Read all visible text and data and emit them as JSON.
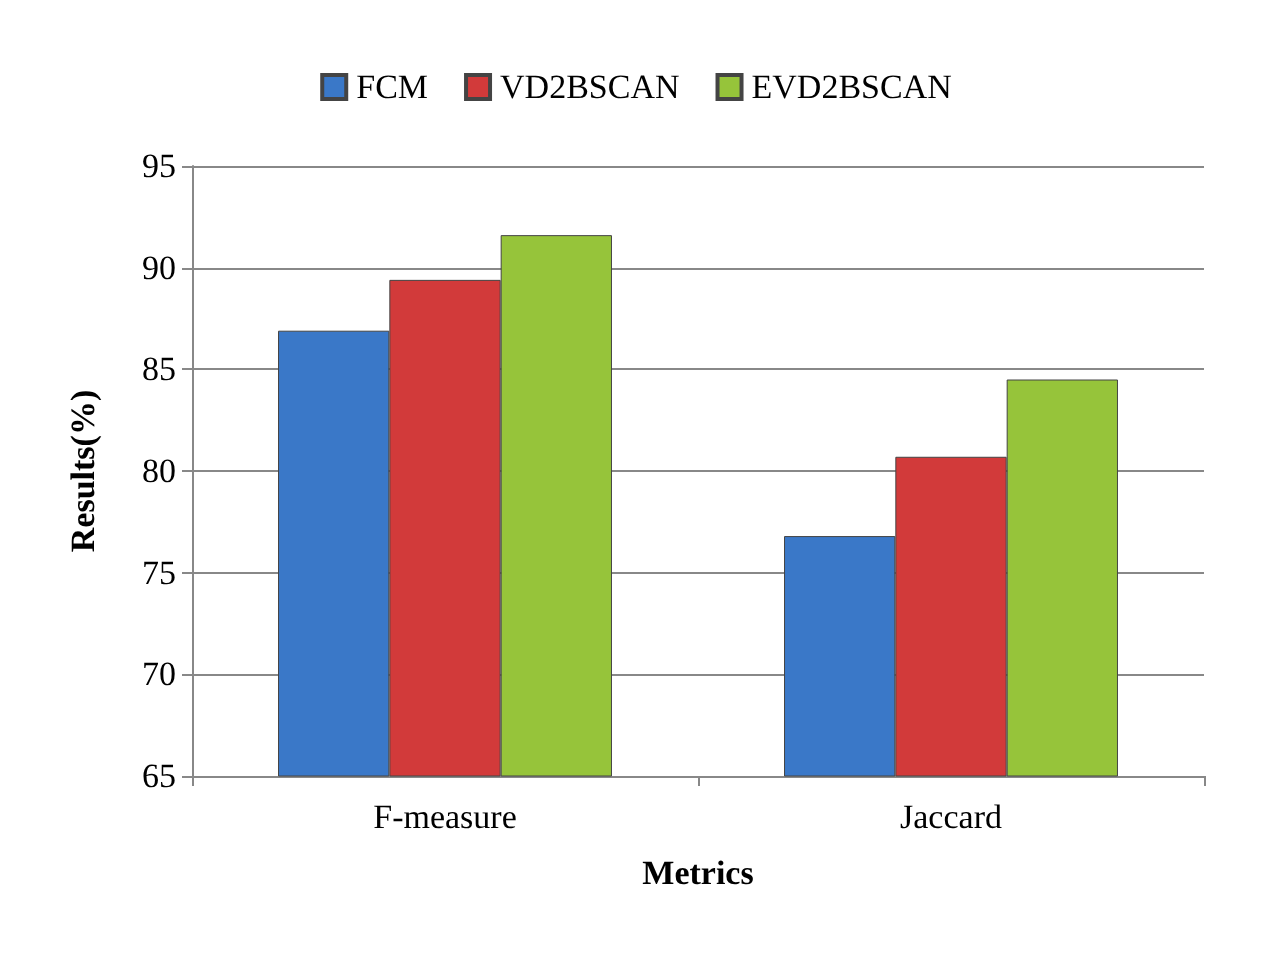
{
  "chart_data": {
    "type": "bar",
    "xlabel": "Metrics",
    "ylabel": "Results(%)",
    "categories": [
      "F-measure",
      "Jaccard"
    ],
    "series": [
      {
        "name": "FCM",
        "color": "#3a78c8",
        "values": [
          86.9,
          76.8
        ]
      },
      {
        "name": "VD2BSCAN",
        "color": "#d23a3a",
        "values": [
          89.4,
          80.7
        ]
      },
      {
        "name": "EVD2BSCAN",
        "color": "#96c43a",
        "values": [
          91.6,
          84.5
        ]
      }
    ],
    "ylim": [
      65,
      95
    ],
    "yticks": [
      65,
      70,
      75,
      80,
      85,
      90,
      95
    ],
    "grid": "y",
    "legend": "top"
  }
}
